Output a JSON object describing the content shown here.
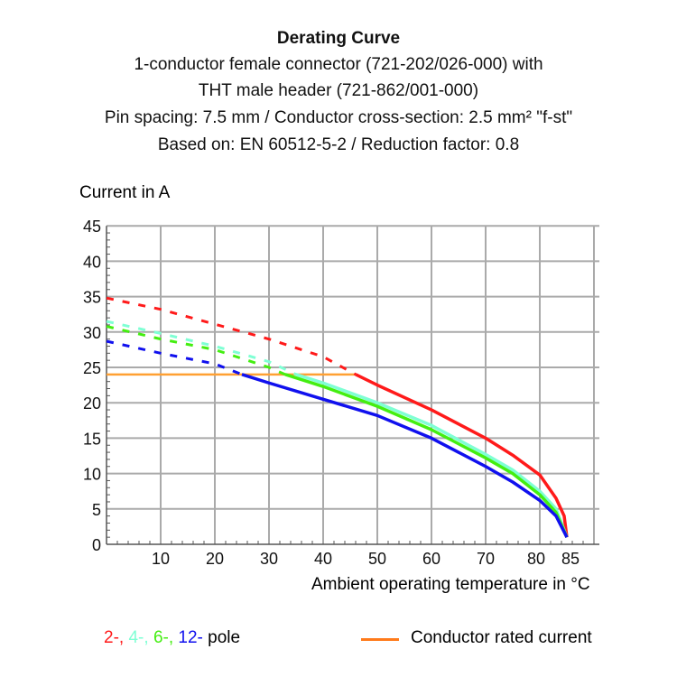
{
  "chart_data": {
    "type": "line",
    "title": "Derating Curve",
    "subtitle": [
      "1-conductor female connector (721-202/026-000) with",
      "THT male header (721-862/001-000)",
      "Pin spacing: 7.5 mm / Conductor cross-section: 2.5 mm² \"f-st\"",
      "Based on: EN 60512-5-2 / Reduction factor: 0.8"
    ],
    "xlabel": "Ambient operating temperature in °C",
    "ylabel": "Current in A",
    "xlim": [
      0,
      91
    ],
    "ylim": [
      0,
      45
    ],
    "xticks": [
      10,
      20,
      30,
      40,
      50,
      60,
      70,
      80,
      85
    ],
    "yticks": [
      0,
      5,
      10,
      15,
      20,
      25,
      30,
      35,
      40,
      45
    ],
    "grid": true,
    "series": [
      {
        "name": "2-",
        "color": "#ff1a1a",
        "dashed": [
          [
            0,
            34.8
          ],
          [
            10,
            33.2
          ],
          [
            20,
            31.1
          ],
          [
            30,
            29
          ],
          [
            40,
            26.5
          ],
          [
            46,
            24
          ]
        ],
        "solid": [
          [
            46,
            24
          ],
          [
            50,
            22.5
          ],
          [
            60,
            19
          ],
          [
            70,
            15
          ],
          [
            75,
            12.6
          ],
          [
            80,
            9.8
          ],
          [
            83,
            6.5
          ],
          [
            84.5,
            4
          ],
          [
            85,
            1
          ]
        ]
      },
      {
        "name": "4-",
        "color": "#7fffd4",
        "dashed": [
          [
            0,
            31.5
          ],
          [
            10,
            29.8
          ],
          [
            20,
            28
          ],
          [
            30,
            25.8
          ],
          [
            35,
            24
          ]
        ],
        "solid": [
          [
            35,
            24
          ],
          [
            40,
            22.8
          ],
          [
            50,
            20
          ],
          [
            60,
            16.8
          ],
          [
            70,
            12.7
          ],
          [
            75,
            10.5
          ],
          [
            80,
            7.5
          ],
          [
            83,
            5
          ],
          [
            85,
            1
          ]
        ]
      },
      {
        "name": "6-",
        "color": "#44ee11",
        "dashed": [
          [
            0,
            30.8
          ],
          [
            10,
            29
          ],
          [
            20,
            27.5
          ],
          [
            30,
            25
          ],
          [
            33,
            24
          ]
        ],
        "solid": [
          [
            33,
            24
          ],
          [
            40,
            22.3
          ],
          [
            50,
            19.5
          ],
          [
            60,
            16.2
          ],
          [
            70,
            12.2
          ],
          [
            75,
            10
          ],
          [
            80,
            7
          ],
          [
            83,
            4.5
          ],
          [
            85,
            1
          ]
        ]
      },
      {
        "name": "12-",
        "color": "#1010ee",
        "dashed": [
          [
            0,
            28.7
          ],
          [
            10,
            27
          ],
          [
            20,
            25.5
          ],
          [
            25,
            24
          ]
        ],
        "solid": [
          [
            25,
            24
          ],
          [
            30,
            22.8
          ],
          [
            40,
            20.5
          ],
          [
            50,
            18.2
          ],
          [
            60,
            15
          ],
          [
            70,
            11
          ],
          [
            75,
            8.8
          ],
          [
            80,
            6.2
          ],
          [
            83,
            4
          ],
          [
            85,
            1
          ]
        ]
      }
    ],
    "rated_current": {
      "name": "Conductor rated current",
      "color": "#ffa033",
      "value": 24,
      "x_end": 46
    },
    "legend": {
      "placement": "bottom",
      "poles_suffix": " pole"
    }
  }
}
